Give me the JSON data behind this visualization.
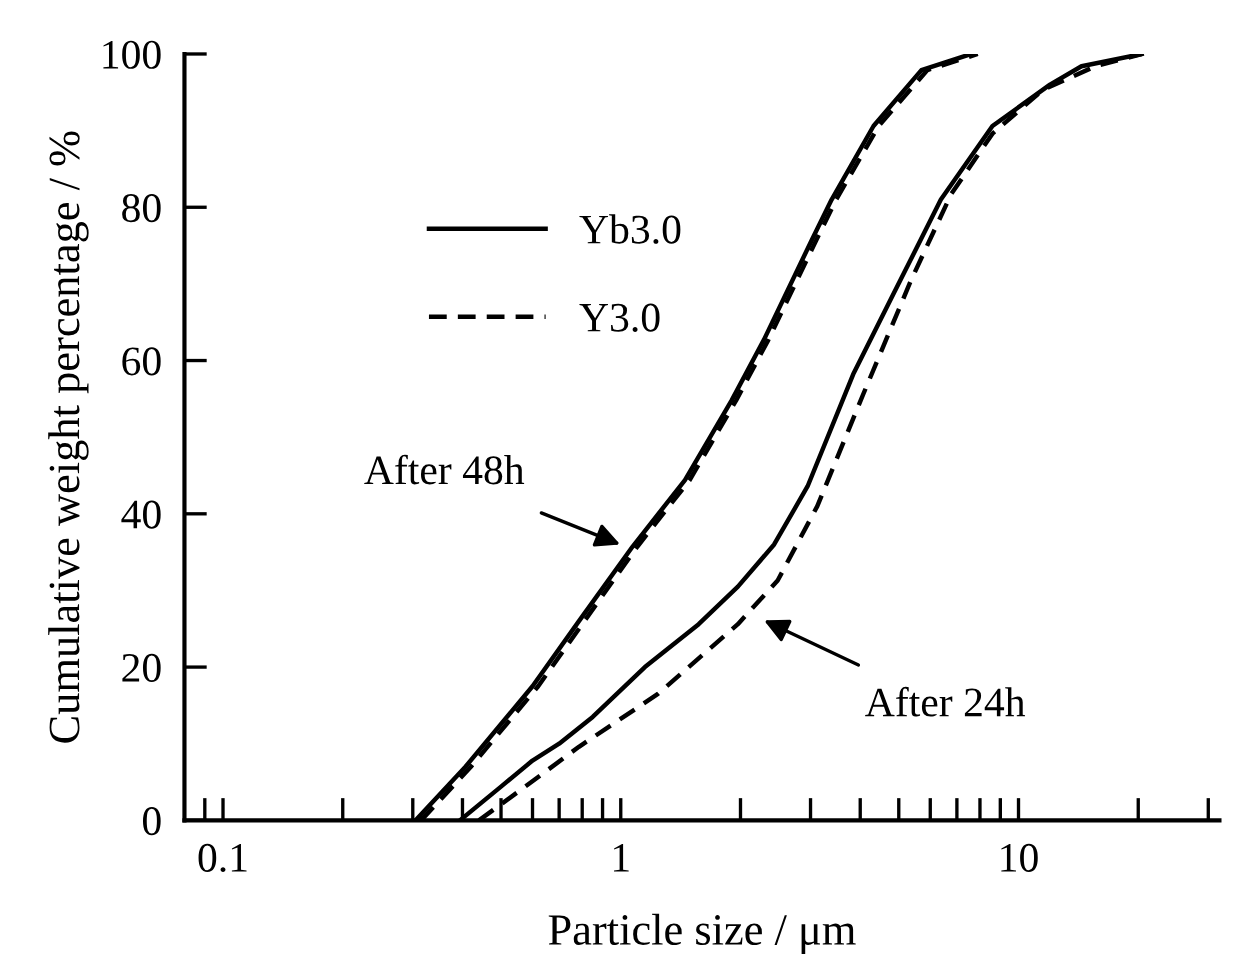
{
  "chart_data": {
    "type": "line",
    "xlabel": "Particle size / μm",
    "ylabel": "Cumulative weight percentage / %",
    "log": "x",
    "xlim": [
      0.08,
      32
    ],
    "xticks": [
      {
        "value": 0.09,
        "label": null
      },
      0.1,
      {
        "value": 0.2,
        "label": null
      },
      {
        "value": 0.3,
        "label": null
      },
      {
        "value": 0.4,
        "label": null
      },
      {
        "value": 0.5,
        "label": null
      },
      {
        "value": 0.6,
        "label": null
      },
      {
        "value": 0.7,
        "label": null
      },
      {
        "value": 0.8,
        "label": null
      },
      {
        "value": 0.9,
        "label": null
      },
      1,
      {
        "value": 2,
        "label": null
      },
      {
        "value": 3,
        "label": null
      },
      {
        "value": 4,
        "label": null
      },
      {
        "value": 5,
        "label": null
      },
      {
        "value": 6,
        "label": null
      },
      {
        "value": 7,
        "label": null
      },
      {
        "value": 8,
        "label": null
      },
      {
        "value": 9,
        "label": null
      },
      10,
      {
        "value": 20,
        "label": null
      },
      {
        "value": 30,
        "label": null
      }
    ],
    "ylim": [
      0,
      100
    ],
    "yticks": [
      0,
      20,
      40,
      60,
      80,
      100
    ],
    "grid": false,
    "legend": "top left",
    "marker": "none",
    "series": [
      {
        "name": "Yb3.0",
        "color": "#000000",
        "line_style": "solid",
        "x": [
          0.305,
          0.407,
          0.6,
          0.785,
          1.07,
          1.45,
          1.9,
          2.29,
          3.02,
          3.39,
          4.32,
          5.7,
          7.6
        ],
        "values": [
          0,
          7,
          17.5,
          26,
          35.7,
          44.4,
          54.8,
          62.7,
          75.7,
          81,
          90.6,
          97.9,
          100
        ]
      },
      {
        "name": "Y3.0",
        "color": "#000000",
        "line_style": "dashed",
        "x": [
          0.315,
          0.42,
          0.62,
          0.81,
          1.1,
          1.49,
          1.95,
          2.35,
          3.1,
          3.48,
          4.45,
          5.9,
          7.9
        ],
        "values": [
          0,
          7,
          17.5,
          26,
          35.7,
          44.4,
          54.8,
          62.7,
          75.7,
          81,
          90.6,
          97.9,
          100
        ]
      },
      {
        "color": "#000000",
        "line_style": "solid",
        "x": [
          0.394,
          0.5,
          0.6,
          0.7,
          0.85,
          1.15,
          1.57,
          1.97,
          2.43,
          2.95,
          3.84,
          4.85,
          6.38,
          8.6,
          12,
          14.4,
          20.4
        ],
        "values": [
          0,
          4.4,
          7.8,
          10,
          13.5,
          20,
          25.6,
          30.5,
          36,
          43.6,
          58.2,
          68.7,
          81,
          90.6,
          96,
          98.4,
          100
        ]
      },
      {
        "color": "#000000",
        "line_style": "dashed",
        "x": [
          0.44,
          0.575,
          0.785,
          1.24,
          1.97,
          2.48,
          3.12,
          4.07,
          5.37,
          6.77,
          8.6,
          11.5,
          15.6,
          20.4
        ],
        "values": [
          0,
          4.4,
          9.6,
          16.5,
          25.6,
          31.3,
          41,
          55.6,
          70.5,
          81.7,
          89.6,
          95.3,
          98.4,
          100
        ]
      }
    ],
    "annotations": [
      "After 48h",
      "After 24h"
    ]
  }
}
